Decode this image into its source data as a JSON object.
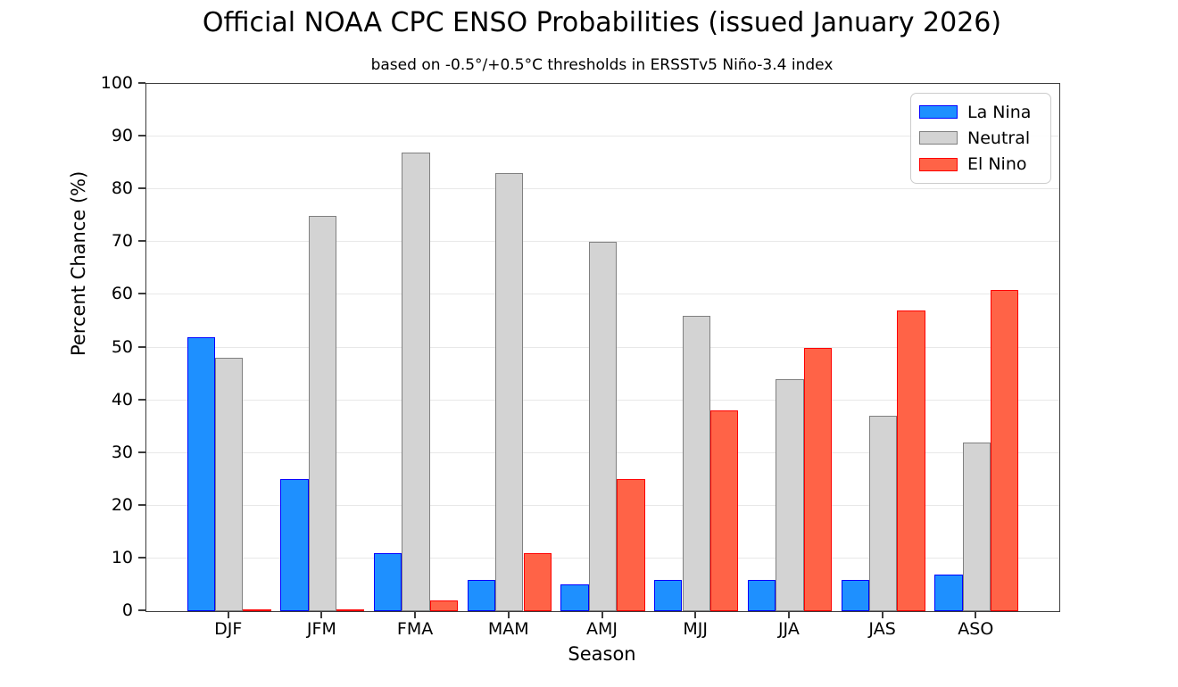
{
  "title": "Official NOAA CPC ENSO Probabilities (issued January 2026)",
  "subtitle": "based on -0.5°/+0.5°C thresholds in ERSSTv5 Niño-3.4 index",
  "chart_data": {
    "type": "bar",
    "categories": [
      "DJF",
      "JFM",
      "FMA",
      "MAM",
      "AMJ",
      "MJJ",
      "JJA",
      "JAS",
      "ASO"
    ],
    "series": [
      {
        "name": "La Nina",
        "fill": "#1E90FF",
        "edge": "#0000FF",
        "values": [
          52,
          25,
          11,
          6,
          5,
          6,
          6,
          6,
          7
        ]
      },
      {
        "name": "Neutral",
        "fill": "#D3D3D3",
        "edge": "#808080",
        "values": [
          48,
          75,
          87,
          83,
          70,
          56,
          44,
          37,
          32
        ]
      },
      {
        "name": "El Nino",
        "fill": "#FF6347",
        "edge": "#FF0000",
        "values": [
          0,
          0,
          2,
          11,
          25,
          38,
          50,
          57,
          61
        ]
      }
    ],
    "xlabel": "Season",
    "ylabel": "Percent Chance (%)",
    "ylim": [
      0,
      100
    ],
    "yticks": [
      0,
      10,
      20,
      30,
      40,
      50,
      60,
      70,
      80,
      90,
      100
    ],
    "grid": true,
    "legend_position": "upper right"
  }
}
